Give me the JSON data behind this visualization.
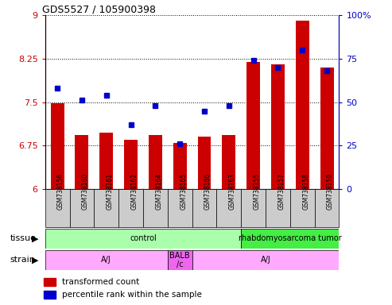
{
  "title": "GDS5527 / 105900398",
  "samples": [
    "GSM738156",
    "GSM738160",
    "GSM738161",
    "GSM738162",
    "GSM738164",
    "GSM738165",
    "GSM738166",
    "GSM738163",
    "GSM738155",
    "GSM738157",
    "GSM738158",
    "GSM738159"
  ],
  "transformed_count": [
    7.48,
    6.93,
    6.97,
    6.85,
    6.93,
    6.8,
    6.9,
    6.93,
    8.2,
    8.15,
    8.9,
    8.1
  ],
  "percentile_rank": [
    58,
    51,
    54,
    37,
    48,
    26,
    45,
    48,
    74,
    70,
    80,
    68
  ],
  "ylim_left": [
    6,
    9
  ],
  "ylim_right": [
    0,
    100
  ],
  "yticks_left": [
    6,
    6.75,
    7.5,
    8.25,
    9
  ],
  "yticks_right": [
    0,
    25,
    50,
    75,
    100
  ],
  "bar_color": "#cc0000",
  "dot_color": "#0000cc",
  "tissue_groups": [
    {
      "text": "control",
      "start": 0,
      "end": 8,
      "color": "#aaffaa"
    },
    {
      "text": "rhabdomyosarcoma tumor",
      "start": 8,
      "end": 12,
      "color": "#44ee44"
    }
  ],
  "strain_groups": [
    {
      "text": "A/J",
      "start": 0,
      "end": 5,
      "color": "#ffaaff"
    },
    {
      "text": "BALB\n/c",
      "start": 5,
      "end": 6,
      "color": "#ee66ee"
    },
    {
      "text": "A/J",
      "start": 6,
      "end": 12,
      "color": "#ffaaff"
    }
  ],
  "legend_items": [
    {
      "label": "transformed count",
      "color": "#cc0000"
    },
    {
      "label": "percentile rank within the sample",
      "color": "#0000cc"
    }
  ]
}
